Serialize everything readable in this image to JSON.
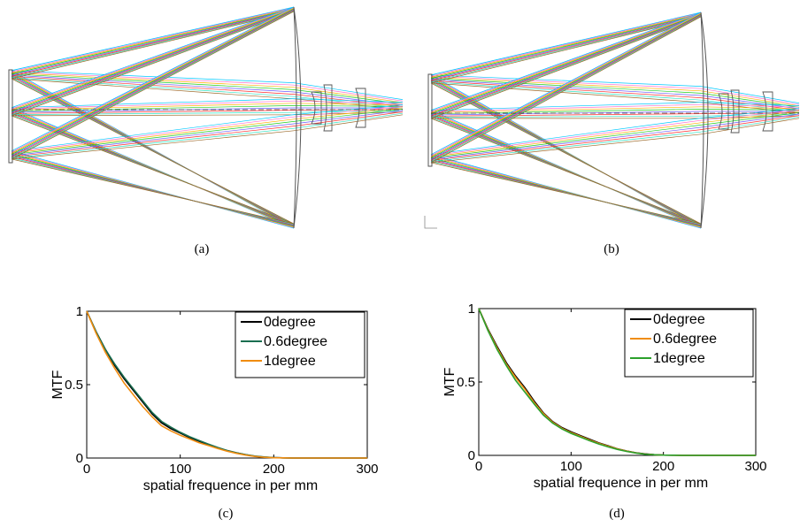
{
  "captions": {
    "a": "(a)",
    "b": "(b)",
    "c": "(c)",
    "d": "(d)"
  },
  "colors": {
    "ray_palette": [
      "#00c8ff",
      "#ff6fd0",
      "#ffb000",
      "#22cc22",
      "#6a5cff",
      "#ff3030",
      "#30e0c0",
      "#9c6a2a"
    ],
    "lens": "#555555"
  },
  "chart_data": [
    {
      "type": "line",
      "panel": "c",
      "xlabel": "spatial frequence in per mm",
      "ylabel": "MTF",
      "xlim": [
        0,
        300
      ],
      "ylim": [
        0,
        1
      ],
      "xticks": [
        "0",
        "100",
        "200",
        "300"
      ],
      "yticks": [
        "0",
        "0.5",
        "1"
      ],
      "legend_position": "top-right",
      "series": [
        {
          "name": "0degree",
          "color": "#000000",
          "x": [
            0,
            10,
            20,
            30,
            40,
            50,
            60,
            70,
            80,
            90,
            100,
            110,
            120,
            130,
            140,
            150,
            160,
            170,
            180,
            190,
            200,
            210,
            220,
            300
          ],
          "y": [
            1.0,
            0.86,
            0.74,
            0.63,
            0.54,
            0.46,
            0.38,
            0.3,
            0.24,
            0.2,
            0.17,
            0.14,
            0.115,
            0.09,
            0.07,
            0.05,
            0.035,
            0.022,
            0.012,
            0.006,
            0.003,
            0.001,
            0,
            0
          ]
        },
        {
          "name": "0.6degree",
          "color": "#1a6e50",
          "x": [
            0,
            10,
            20,
            30,
            40,
            50,
            60,
            70,
            80,
            90,
            100,
            110,
            120,
            130,
            140,
            150,
            160,
            170,
            180,
            190,
            200,
            210,
            220,
            300
          ],
          "y": [
            1.0,
            0.86,
            0.74,
            0.64,
            0.55,
            0.47,
            0.39,
            0.31,
            0.25,
            0.21,
            0.175,
            0.145,
            0.12,
            0.095,
            0.072,
            0.052,
            0.036,
            0.023,
            0.013,
            0.007,
            0.003,
            0.001,
            0,
            0
          ]
        },
        {
          "name": "1degree",
          "color": "#f08c10",
          "x": [
            0,
            10,
            20,
            30,
            40,
            50,
            60,
            70,
            80,
            90,
            100,
            110,
            120,
            130,
            140,
            150,
            160,
            170,
            180,
            190,
            200,
            210,
            220,
            300
          ],
          "y": [
            1.0,
            0.85,
            0.72,
            0.61,
            0.51,
            0.43,
            0.35,
            0.28,
            0.22,
            0.185,
            0.155,
            0.13,
            0.105,
            0.085,
            0.065,
            0.047,
            0.032,
            0.02,
            0.011,
            0.005,
            0.002,
            0.001,
            0,
            0
          ]
        }
      ]
    },
    {
      "type": "line",
      "panel": "d",
      "xlabel": "spatial frequence in per mm",
      "ylabel": "MTF",
      "xlim": [
        0,
        300
      ],
      "ylim": [
        0,
        1
      ],
      "xticks": [
        "0",
        "100",
        "200",
        "300"
      ],
      "yticks": [
        "0",
        "0.5",
        "1"
      ],
      "legend_position": "top-right",
      "series": [
        {
          "name": "0degree",
          "color": "#000000",
          "x": [
            0,
            10,
            20,
            30,
            40,
            50,
            60,
            70,
            80,
            90,
            100,
            110,
            120,
            130,
            140,
            150,
            160,
            170,
            180,
            190,
            200,
            210,
            220,
            300
          ],
          "y": [
            1.0,
            0.86,
            0.74,
            0.63,
            0.54,
            0.46,
            0.37,
            0.29,
            0.23,
            0.19,
            0.16,
            0.135,
            0.11,
            0.085,
            0.065,
            0.045,
            0.03,
            0.018,
            0.01,
            0.005,
            0.002,
            0.001,
            0,
            0
          ]
        },
        {
          "name": "0.6degree",
          "color": "#f08c10",
          "x": [
            0,
            10,
            20,
            30,
            40,
            50,
            60,
            70,
            80,
            90,
            100,
            110,
            120,
            130,
            140,
            150,
            160,
            170,
            180,
            190,
            200,
            210,
            220,
            300
          ],
          "y": [
            1.0,
            0.855,
            0.73,
            0.62,
            0.53,
            0.45,
            0.36,
            0.285,
            0.225,
            0.185,
            0.155,
            0.13,
            0.105,
            0.082,
            0.062,
            0.044,
            0.029,
            0.017,
            0.009,
            0.004,
            0.002,
            0.001,
            0,
            0
          ]
        },
        {
          "name": "1degree",
          "color": "#2ca02c",
          "x": [
            0,
            10,
            20,
            30,
            40,
            50,
            60,
            70,
            80,
            90,
            100,
            110,
            120,
            130,
            140,
            150,
            160,
            170,
            180,
            190,
            200,
            210,
            220,
            300
          ],
          "y": [
            1.0,
            0.85,
            0.72,
            0.61,
            0.51,
            0.43,
            0.35,
            0.275,
            0.22,
            0.18,
            0.15,
            0.125,
            0.1,
            0.078,
            0.058,
            0.041,
            0.027,
            0.016,
            0.008,
            0.004,
            0.002,
            0.001,
            0,
            0
          ]
        }
      ]
    }
  ]
}
